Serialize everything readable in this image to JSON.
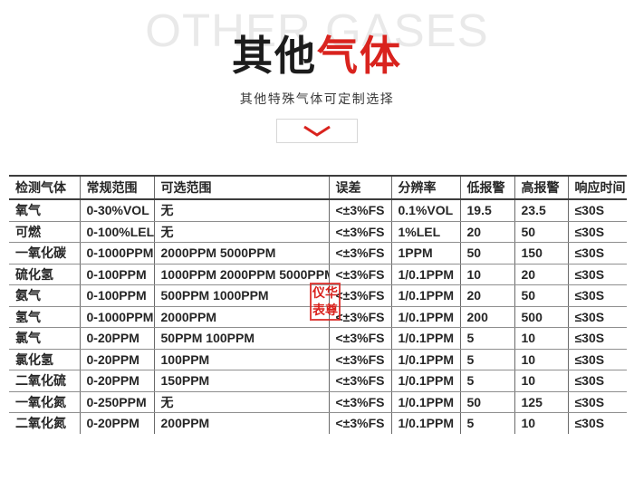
{
  "header": {
    "watermark": "OTHER GASES",
    "title_black": "其他",
    "title_red": "气体",
    "subtitle": "其他特殊气体可定制选择",
    "expand_icon": "chevron-down-icon"
  },
  "colors": {
    "accent_red": "#d9231e",
    "watermark_gray": "#e9e9e9",
    "table_line_dark": "#3d3d3d",
    "table_line_gray": "#8e8e8e"
  },
  "stamp": {
    "line1": "仪华",
    "line2": "表尊"
  },
  "table": {
    "headers": [
      "检测气体",
      "常规范围",
      "可选范围",
      "误差",
      "分辨率",
      "低报警",
      "高报警",
      "响应时间"
    ],
    "rows": [
      [
        "氧气",
        "0-30%VOL",
        "无",
        "<±3%FS",
        "0.1%VOL",
        "19.5",
        "23.5",
        "≤30S"
      ],
      [
        "可燃",
        "0-100%LEL",
        "无",
        "<±3%FS",
        "1%LEL",
        "20",
        "50",
        "≤30S"
      ],
      [
        "一氧化碳",
        "0-1000PPM",
        "2000PPM 5000PPM",
        "<±3%FS",
        "1PPM",
        "50",
        "150",
        "≤30S"
      ],
      [
        "硫化氢",
        "0-100PPM",
        "1000PPM 2000PPM 5000PPM",
        "<±3%FS",
        "1/0.1PPM",
        "10",
        "20",
        "≤30S"
      ],
      [
        "氨气",
        "0-100PPM",
        "500PPM 1000PPM",
        "<±3%FS",
        "1/0.1PPM",
        "20",
        "50",
        "≤30S"
      ],
      [
        "氢气",
        "0-1000PPM",
        "2000PPM",
        "<±3%FS",
        "1/0.1PPM",
        "200",
        "500",
        "≤30S"
      ],
      [
        "氯气",
        "0-20PPM",
        "50PPM 100PPM",
        "<±3%FS",
        "1/0.1PPM",
        "5",
        "10",
        "≤30S"
      ],
      [
        "氯化氢",
        "0-20PPM",
        "100PPM",
        "<±3%FS",
        "1/0.1PPM",
        "5",
        "10",
        "≤30S"
      ],
      [
        "二氧化硫",
        "0-20PPM",
        "150PPM",
        "<±3%FS",
        "1/0.1PPM",
        "5",
        "10",
        "≤30S"
      ],
      [
        "一氧化氮",
        "0-250PPM",
        "无",
        "<±3%FS",
        "1/0.1PPM",
        "50",
        "125",
        "≤30S"
      ],
      [
        "二氧化氮",
        "0-20PPM",
        "200PPM",
        "<±3%FS",
        "1/0.1PPM",
        "5",
        "10",
        "≤30S"
      ]
    ]
  }
}
